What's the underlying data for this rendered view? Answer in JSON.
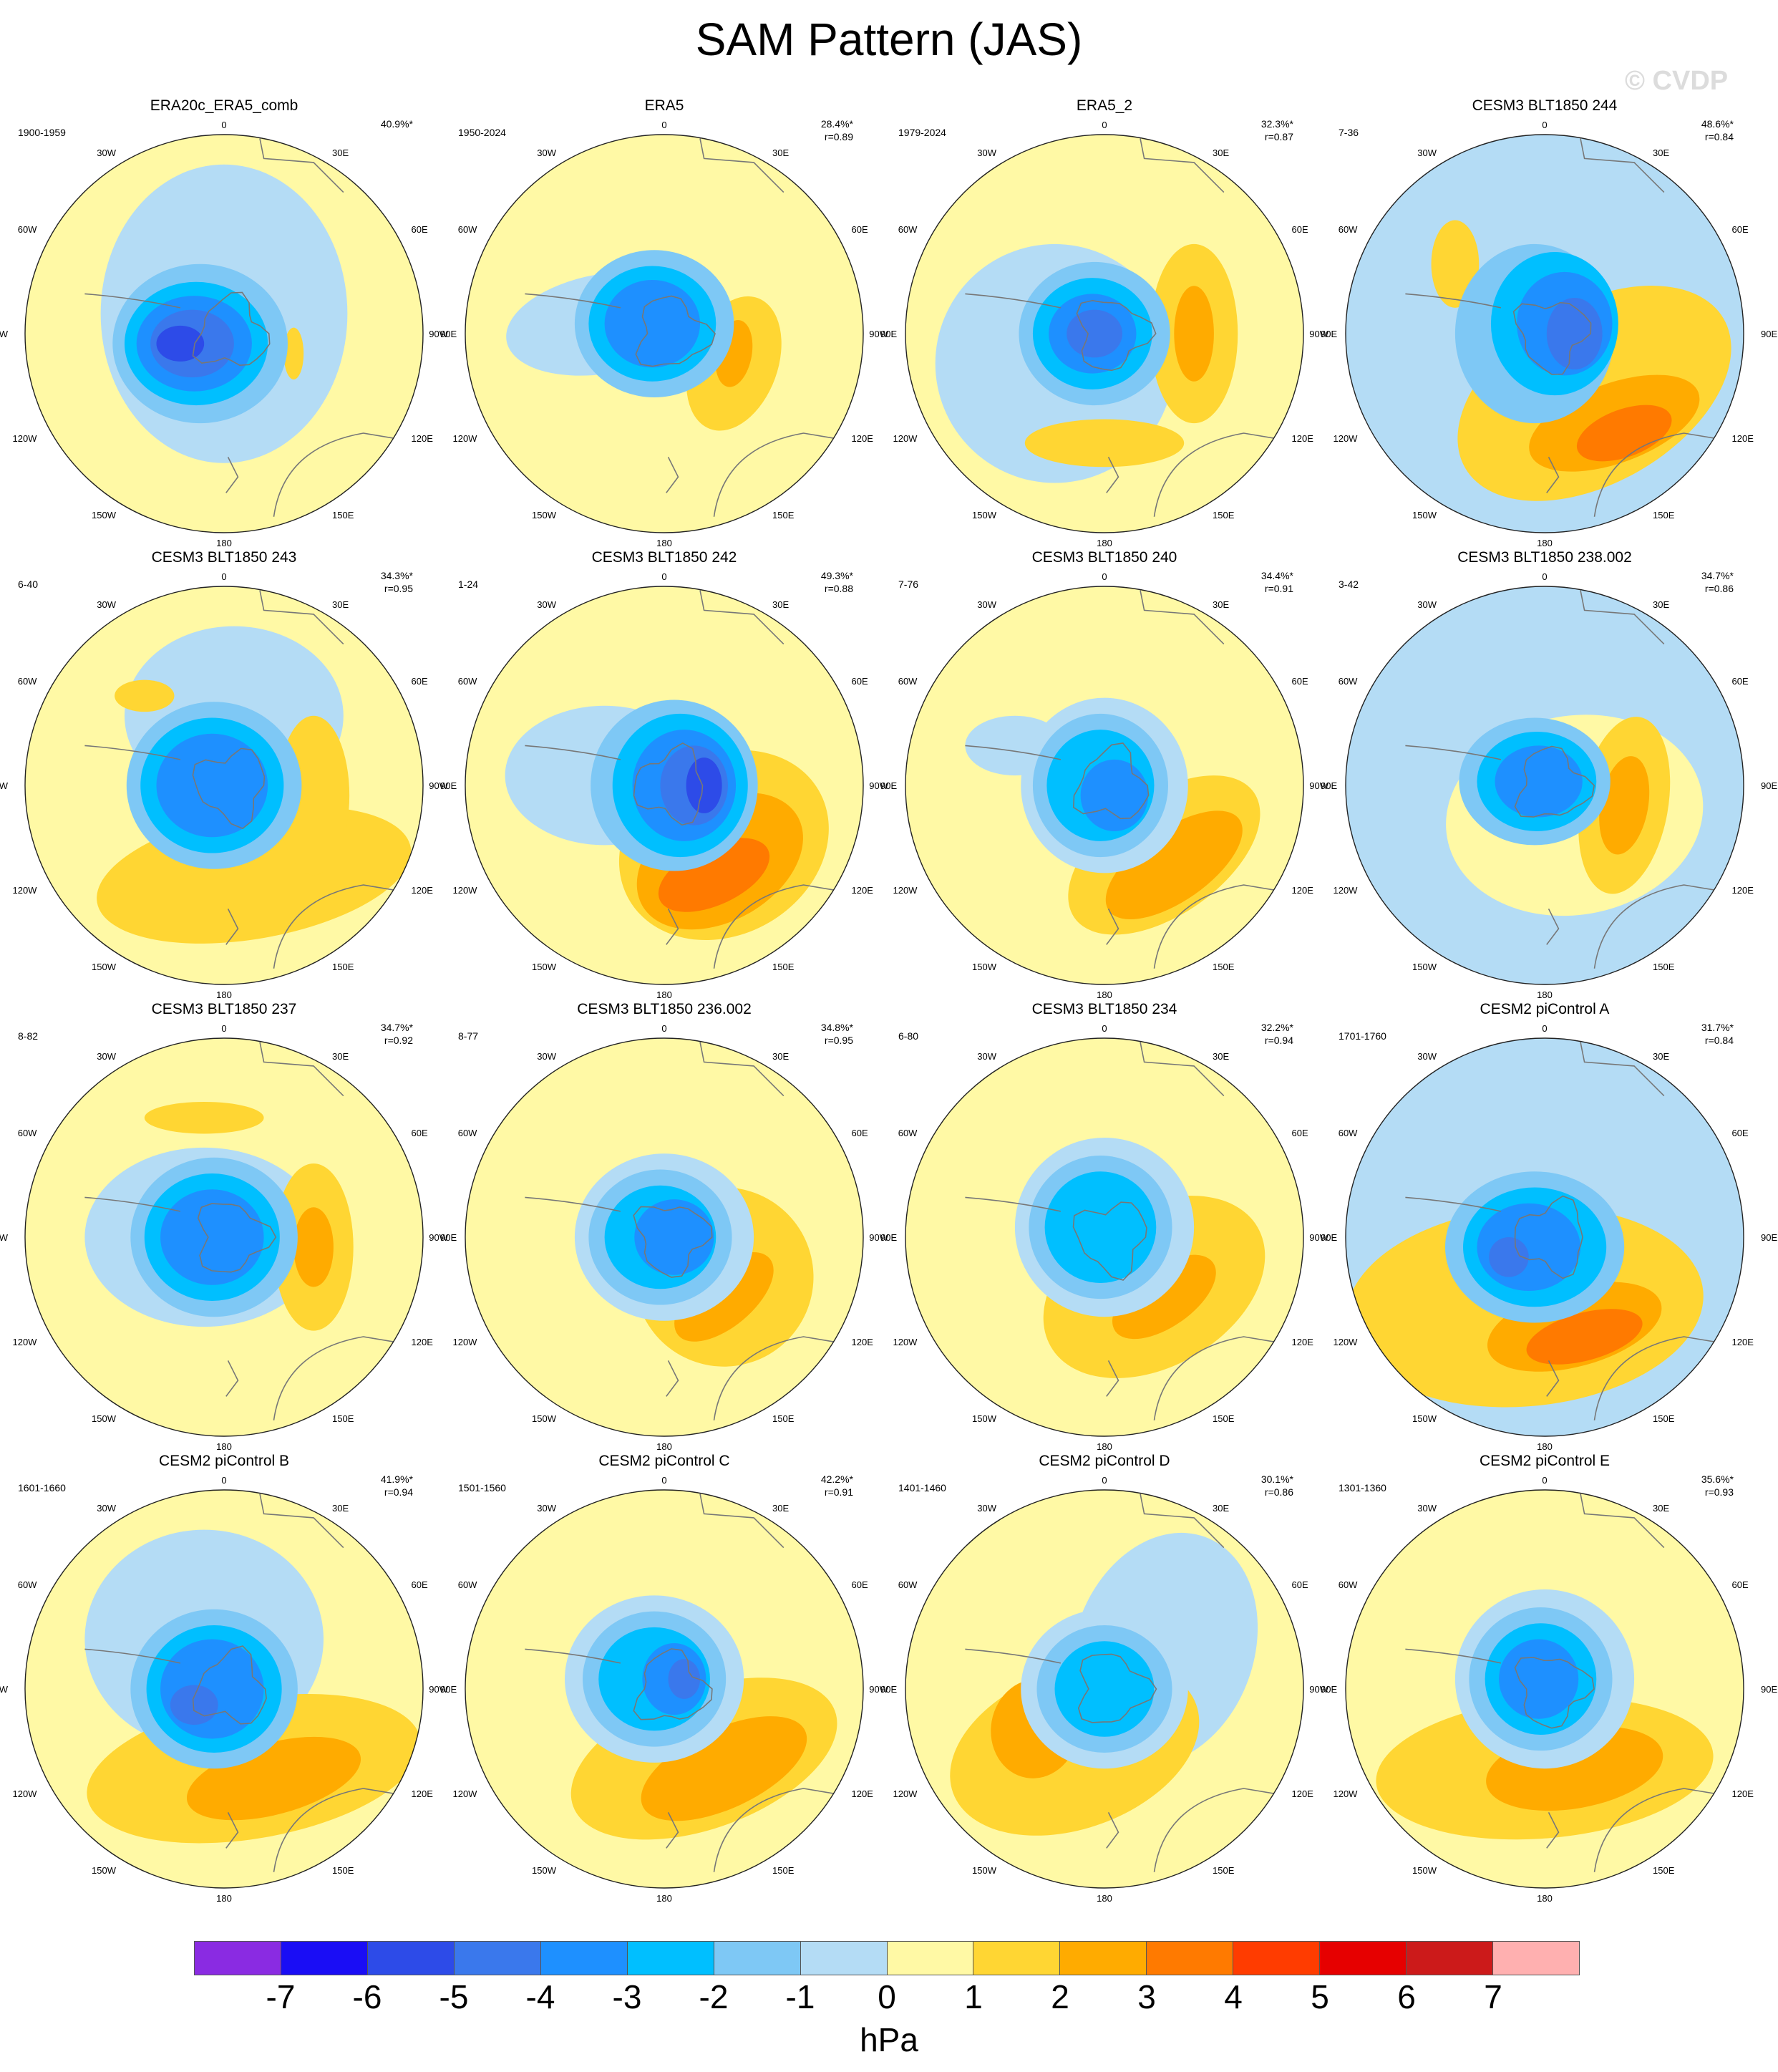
{
  "title": "SAM Pattern (JAS)",
  "watermark": "© CVDP",
  "units": "hPa",
  "colorbar": {
    "colors": [
      "#8a2be2",
      "#1a0df5",
      "#2d4be8",
      "#3a78ec",
      "#1e90ff",
      "#00bfff",
      "#7ec8f5",
      "#b4dcf5",
      "#fff9a5",
      "#ffd633",
      "#ffab00",
      "#ff7a00",
      "#ff3c00",
      "#e60000",
      "#cc1a1a",
      "#ffb0b0"
    ],
    "ticks": [
      "-7",
      "-6",
      "-5",
      "-4",
      "-3",
      "-2",
      "-1",
      "0",
      "1",
      "2",
      "3",
      "4",
      "5",
      "6",
      "7"
    ]
  },
  "lon_labels": [
    "0",
    "30E",
    "60E",
    "90E",
    "120E",
    "150E",
    "180",
    "150W",
    "120W",
    "90W",
    "60W",
    "30W"
  ],
  "panels": [
    {
      "name": "ERA20c_ERA5_comb",
      "years": "1900-1959",
      "pct": "40.9%*",
      "r": ""
    },
    {
      "name": "ERA5",
      "years": "1950-2024",
      "pct": "28.4%*",
      "r": "r=0.89"
    },
    {
      "name": "ERA5_2",
      "years": "1979-2024",
      "pct": "32.3%*",
      "r": "r=0.87"
    },
    {
      "name": "CESM3 BLT1850 244",
      "years": "7-36",
      "pct": "48.6%*",
      "r": "r=0.84"
    },
    {
      "name": "CESM3 BLT1850 243",
      "years": "6-40",
      "pct": "34.3%*",
      "r": "r=0.95"
    },
    {
      "name": "CESM3 BLT1850 242",
      "years": "1-24",
      "pct": "49.3%*",
      "r": "r=0.88"
    },
    {
      "name": "CESM3 BLT1850 240",
      "years": "7-76",
      "pct": "34.4%*",
      "r": "r=0.91"
    },
    {
      "name": "CESM3 BLT1850 238.002",
      "years": "3-42",
      "pct": "34.7%*",
      "r": "r=0.86"
    },
    {
      "name": "CESM3 BLT1850 237",
      "years": "8-82",
      "pct": "34.7%*",
      "r": "r=0.92"
    },
    {
      "name": "CESM3 BLT1850 236.002",
      "years": "8-77",
      "pct": "34.8%*",
      "r": "r=0.95"
    },
    {
      "name": "CESM3 BLT1850 234",
      "years": "6-80",
      "pct": "32.2%*",
      "r": "r=0.94"
    },
    {
      "name": "CESM2 piControl A",
      "years": "1701-1760",
      "pct": "31.7%*",
      "r": "r=0.84"
    },
    {
      "name": "CESM2 piControl B",
      "years": "1601-1660",
      "pct": "41.9%*",
      "r": "r=0.94"
    },
    {
      "name": "CESM2 piControl C",
      "years": "1501-1560",
      "pct": "42.2%*",
      "r": "r=0.91"
    },
    {
      "name": "CESM2 piControl D",
      "years": "1401-1460",
      "pct": "30.1%*",
      "r": "r=0.86"
    },
    {
      "name": "CESM2 piControl E",
      "years": "1301-1360",
      "pct": "35.6%*",
      "r": "r=0.93"
    }
  ]
}
